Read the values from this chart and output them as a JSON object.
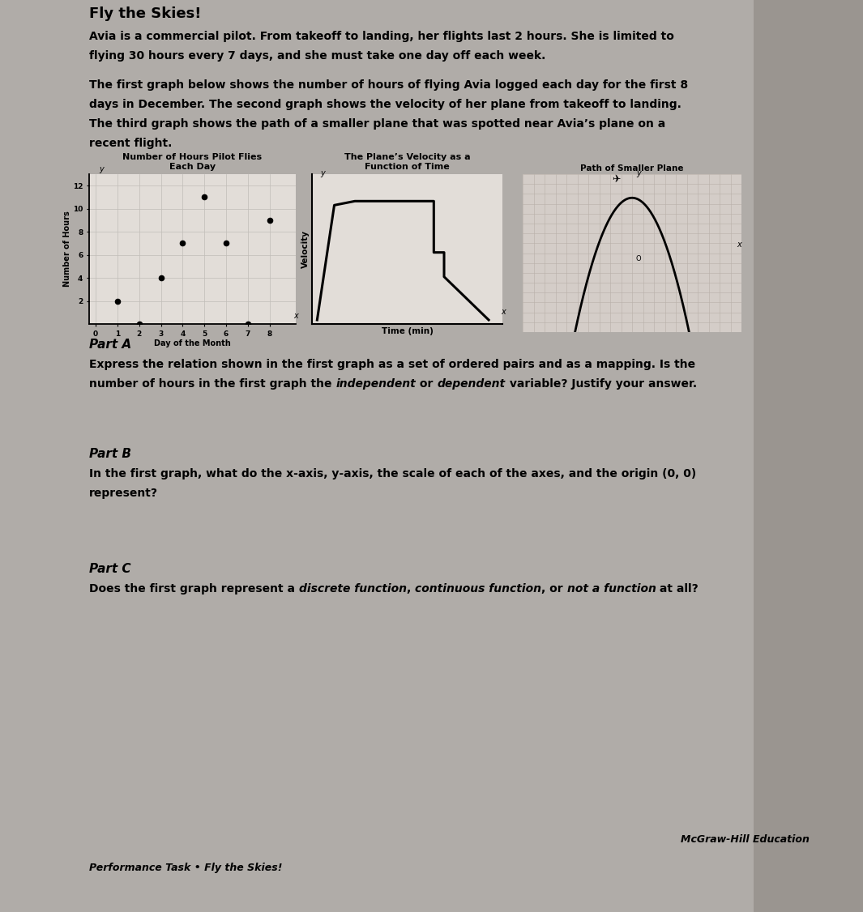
{
  "bg_color": "#b8b4b0",
  "page_color": "#e8e5e0",
  "graph1_title": "Number of Hours Pilot Flies\nEach Day",
  "graph1_xlabel": "Day of the Month",
  "graph1_ylabel": "Number of Hours",
  "graph1_points_x": [
    1,
    2,
    3,
    4,
    5,
    6,
    7,
    8
  ],
  "graph1_points_y": [
    2,
    0,
    4,
    7,
    11,
    7,
    0,
    9
  ],
  "graph2_title": "The Plane’s Velocity as a\nFunction of Time",
  "graph2_xlabel": "Time (min)",
  "graph2_ylabel": "Velocity",
  "graph3_title": "Path of Smaller Plane",
  "footer_left": "Performance Task • Fly the Skies!",
  "footer_right": "McGraw-Hill Education"
}
